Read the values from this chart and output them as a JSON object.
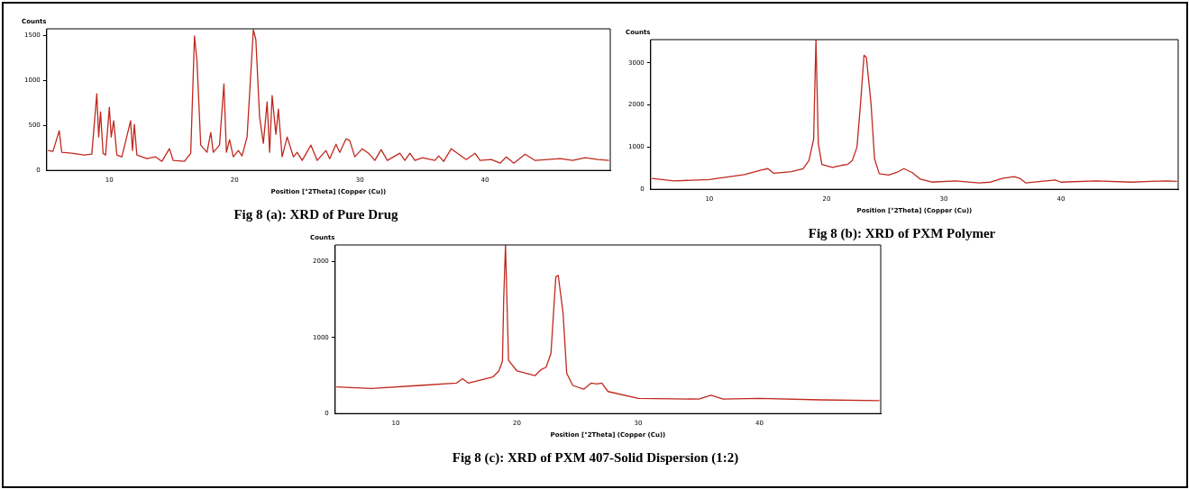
{
  "chart_data": [
    {
      "type": "line",
      "title": "Fig 8 (a): XRD of Pure Drug",
      "xlabel": "Position [°2Theta] (Copper (Cu))",
      "ylabel": "Counts",
      "legend": false,
      "grid": false,
      "marker": "none",
      "xlim": [
        5,
        50
      ],
      "xticks": [
        10,
        20,
        30,
        40
      ],
      "ylim": [
        0,
        1570
      ],
      "yticks": [
        0,
        500,
        1000,
        1500
      ],
      "series": [
        {
          "color": "#c0281e",
          "x": [
            5.1,
            5.5,
            6,
            6.2,
            7,
            8,
            8.6,
            9,
            9.15,
            9.3,
            9.5,
            9.7,
            10,
            10.15,
            10.35,
            10.6,
            11,
            11.7,
            11.85,
            12,
            12.2,
            13,
            13.7,
            14.2,
            14.8,
            15.1,
            16,
            16.5,
            16.8,
            17,
            17.3,
            17.8,
            18.1,
            18.3,
            18.8,
            19.15,
            19.35,
            19.6,
            19.9,
            20.3,
            20.6,
            21,
            21.5,
            21.7,
            22,
            22.3,
            22.6,
            22.8,
            23,
            23.3,
            23.5,
            23.8,
            24.2,
            24.7,
            25,
            25.4,
            26.1,
            26.6,
            27.3,
            27.6,
            28.1,
            28.4,
            28.9,
            29.2,
            29.6,
            30.2,
            30.7,
            31.2,
            31.7,
            32.2,
            33.2,
            33.6,
            34,
            34.4,
            35,
            36,
            36.3,
            36.7,
            37.3,
            38,
            38.5,
            39.2,
            39.6,
            40.5,
            41.2,
            41.7,
            42.3,
            43.2,
            44,
            45,
            46,
            47,
            48,
            49,
            49.9
          ],
          "values": [
            220,
            210,
            440,
            200,
            190,
            170,
            180,
            850,
            370,
            650,
            190,
            170,
            700,
            370,
            550,
            170,
            150,
            550,
            220,
            510,
            170,
            130,
            150,
            100,
            240,
            110,
            100,
            190,
            1490,
            1210,
            280,
            200,
            420,
            200,
            280,
            960,
            200,
            340,
            150,
            220,
            160,
            370,
            1560,
            1450,
            590,
            300,
            760,
            200,
            830,
            400,
            680,
            150,
            370,
            150,
            200,
            110,
            280,
            110,
            220,
            130,
            290,
            200,
            350,
            330,
            150,
            240,
            190,
            110,
            230,
            110,
            190,
            110,
            190,
            110,
            140,
            110,
            160,
            100,
            240,
            170,
            120,
            190,
            110,
            120,
            80,
            150,
            80,
            180,
            110,
            120,
            130,
            110,
            140,
            120,
            110
          ]
        }
      ]
    },
    {
      "type": "line",
      "title": "Fig 8 (b): XRD of PXM Polymer",
      "xlabel": "Position [°2Theta] (Copper (Cu))",
      "ylabel": "Counts",
      "legend": false,
      "grid": false,
      "marker": "none",
      "xlim": [
        5,
        50
      ],
      "xticks": [
        10,
        20,
        30,
        40
      ],
      "ylim": [
        0,
        3550
      ],
      "yticks": [
        0,
        1000,
        2000,
        3000
      ],
      "series": [
        {
          "color": "#c0281e",
          "x": [
            5.1,
            7,
            10,
            13,
            14.5,
            15,
            15.5,
            17,
            18,
            18.5,
            18.9,
            19.1,
            19.3,
            19.6,
            20.5,
            21.3,
            21.8,
            22.2,
            22.6,
            22.9,
            23.2,
            23.4,
            23.8,
            24.1,
            24.5,
            25.3,
            26,
            26.6,
            27.3,
            28,
            29,
            31,
            33,
            34,
            35,
            36,
            36.5,
            37,
            39.5,
            40,
            43,
            46,
            49,
            49.9
          ],
          "values": [
            260,
            200,
            230,
            350,
            460,
            490,
            380,
            420,
            490,
            680,
            1190,
            3550,
            1090,
            590,
            520,
            570,
            590,
            680,
            1000,
            2020,
            3180,
            3130,
            2020,
            720,
            370,
            340,
            400,
            490,
            400,
            240,
            170,
            200,
            150,
            170,
            260,
            300,
            260,
            150,
            220,
            170,
            200,
            170,
            200,
            190
          ]
        }
      ]
    },
    {
      "type": "line",
      "title": "Fig 8 (c): XRD of PXM 407-Solid Dispersion (1:2)",
      "xlabel": "Position [°2Theta] (Copper (Cu))",
      "ylabel": "Counts",
      "legend": false,
      "grid": false,
      "marker": "none",
      "xlim": [
        5,
        50
      ],
      "xticks": [
        10,
        20,
        30,
        40
      ],
      "ylim": [
        0,
        2220
      ],
      "yticks": [
        0,
        1000,
        2000
      ],
      "series": [
        {
          "color": "#c0281e",
          "x": [
            5.1,
            8,
            12,
            15,
            15.5,
            16,
            18,
            18.5,
            18.8,
            18.9,
            19.05,
            19.3,
            20,
            21.5,
            22,
            22.4,
            22.8,
            23.2,
            23.4,
            23.8,
            24.1,
            24.6,
            25.5,
            26.1,
            26.6,
            27,
            27.5,
            30,
            35,
            36,
            37,
            40,
            45,
            49.9
          ],
          "values": [
            350,
            330,
            370,
            400,
            460,
            400,
            480,
            560,
            690,
            1500,
            2220,
            700,
            560,
            500,
            580,
            610,
            790,
            1800,
            1820,
            1320,
            530,
            370,
            320,
            400,
            390,
            400,
            290,
            200,
            190,
            240,
            190,
            200,
            180,
            170
          ]
        }
      ]
    }
  ]
}
